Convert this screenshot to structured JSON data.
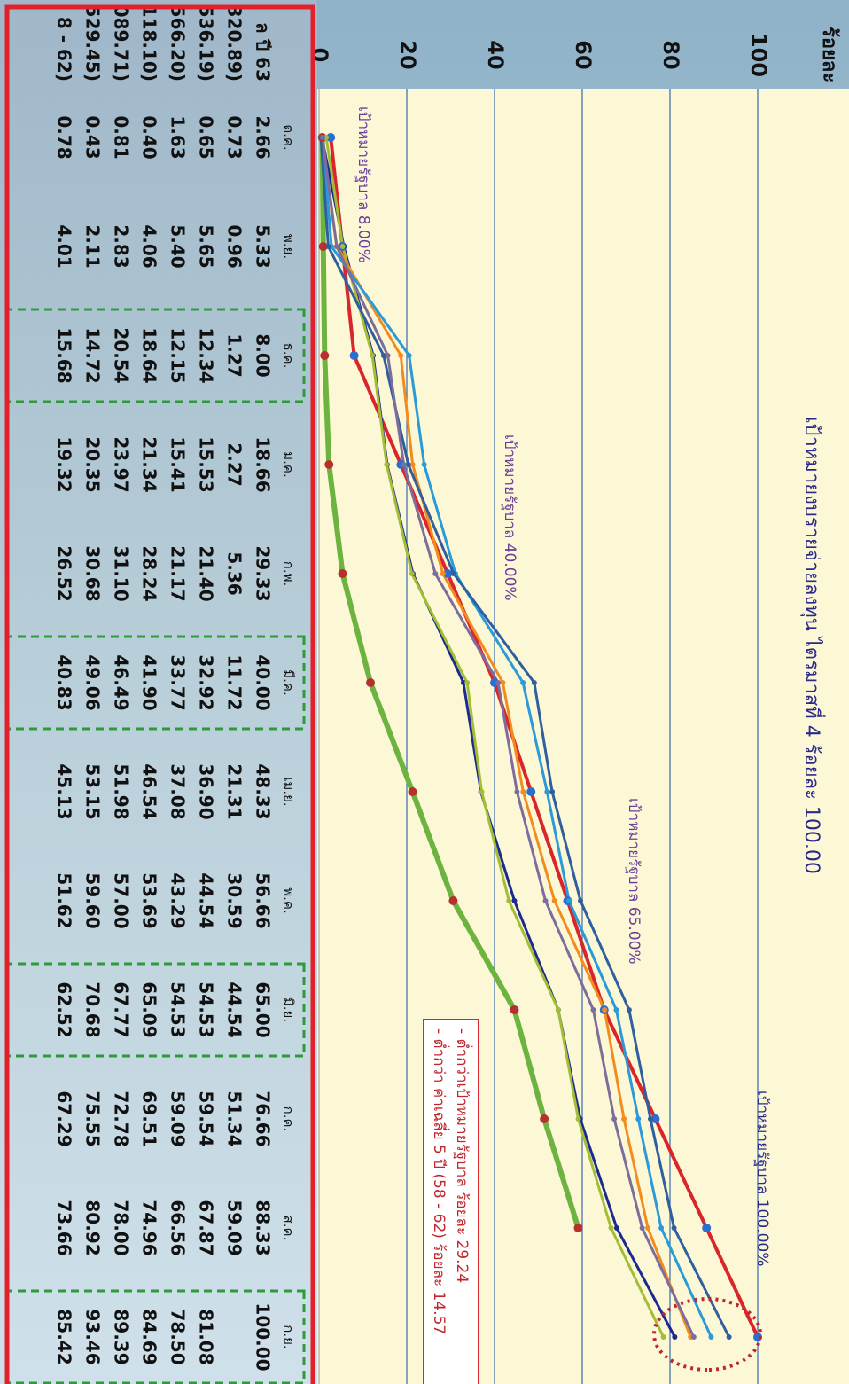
{
  "chart_data": {
    "type": "line",
    "title": "เป้าหมายงบรายจ่ายลงทุน ไตรมาสที่ 4 ร้อยละ 100.00",
    "y_label": "ร้อยละ",
    "categories": [
      "ต.ค.",
      "พ.ย.",
      "ธ.ค.",
      "ม.ค.",
      "ก.พ.",
      "มี.ค.",
      "เม.ย.",
      "พ.ค.",
      "มิ.ย.",
      "ก.ค.",
      "ส.ค.",
      "ก.ย."
    ],
    "ylim": [
      0,
      100
    ],
    "yticks": [
      0,
      20,
      40,
      60,
      80,
      100
    ],
    "grid": true,
    "annotations": [
      "เป้าหมายรัฐบาล 8.00%",
      "เป้าหมายรัฐบาล 40.00%",
      "เป้าหมายรัฐบาล 65.00%",
      "เป้าหมายรัฐบาล 100.00%"
    ],
    "note_lines": [
      "- ต่ำกว่าเป้าหมายรัฐบาล ร้อยละ 29.24",
      "- ต่ำกว่า ค่าเฉลี่ย 5 ปี (58 - 62) ร้อยละ 14.57"
    ],
    "series": [
      {
        "name": "ล ปี 63",
        "color": "#d9262b",
        "line_width": 4,
        "values": [
          2.66,
          5.33,
          8.0,
          18.66,
          29.33,
          40.0,
          48.33,
          56.66,
          65.0,
          76.66,
          88.33,
          100.0
        ],
        "value_labels": [
          "2.66",
          "5.33",
          "8.00",
          "18.66",
          "29.33",
          "40.00",
          "48.33",
          "56.66",
          "65.00",
          "76.66",
          "88.33",
          "100.00"
        ]
      },
      {
        "name": "320.89)",
        "color": "#6cb33f",
        "line_width": 6,
        "values": [
          0.73,
          0.96,
          1.27,
          2.27,
          5.36,
          11.72,
          21.31,
          30.59,
          44.54,
          51.34,
          59.09,
          null
        ],
        "value_labels": [
          "0.73",
          "0.96",
          "1.27",
          "2.27",
          "5.36",
          "11.72",
          "21.31",
          "30.59",
          "44.54",
          "51.34",
          "59.09",
          null
        ]
      },
      {
        "name": "536.19)",
        "color": "#1c2a8f",
        "line_width": 3,
        "values": [
          0.65,
          5.65,
          12.34,
          15.53,
          21.4,
          32.92,
          36.9,
          44.54,
          54.53,
          59.54,
          67.87,
          81.08
        ],
        "value_labels": [
          "0.65",
          "5.65",
          "12.34",
          "15.53",
          "21.40",
          "32.92",
          "36.90",
          "44.54",
          "54.53",
          "59.54",
          "67.87",
          "81.08"
        ]
      },
      {
        "name": "566.20)",
        "color": "#a3bd36",
        "line_width": 3,
        "values": [
          1.63,
          5.4,
          12.15,
          15.41,
          21.17,
          33.77,
          37.08,
          43.29,
          54.53,
          59.09,
          66.56,
          78.5
        ],
        "value_labels": [
          "1.63",
          "5.40",
          "12.15",
          "15.41",
          "21.17",
          "33.77",
          "37.08",
          "43.29",
          "54.53",
          "59.09",
          "66.56",
          "78.50"
        ]
      },
      {
        "name": "118.10)",
        "color": "#f28c1e",
        "line_width": 3,
        "values": [
          0.4,
          4.06,
          18.64,
          21.34,
          28.24,
          41.9,
          46.54,
          53.69,
          65.09,
          69.51,
          74.96,
          84.69
        ],
        "value_labels": [
          "0.40",
          "4.06",
          "18.64",
          "21.34",
          "28.24",
          "41.90",
          "46.54",
          "53.69",
          "65.09",
          "69.51",
          "74.96",
          "84.69"
        ]
      },
      {
        "name": "089.71)",
        "color": "#2a9ad8",
        "line_width": 3,
        "values": [
          0.81,
          2.83,
          20.54,
          23.97,
          31.1,
          46.49,
          51.98,
          57.0,
          67.77,
          72.78,
          78.0,
          89.39
        ],
        "value_labels": [
          "0.81",
          "2.83",
          "20.54",
          "23.97",
          "31.10",
          "46.49",
          "51.98",
          "57.00",
          "67.77",
          "72.78",
          "78.00",
          "89.39"
        ]
      },
      {
        "name": "529.45)",
        "color": "#2f5f9e",
        "line_width": 3,
        "values": [
          0.43,
          2.11,
          14.72,
          20.35,
          30.68,
          49.06,
          53.15,
          59.6,
          70.68,
          75.55,
          80.92,
          93.46
        ],
        "value_labels": [
          "0.43",
          "2.11",
          "14.72",
          "20.35",
          "30.68",
          "49.06",
          "53.15",
          "59.60",
          "70.68",
          "75.55",
          "80.92",
          "93.46"
        ]
      },
      {
        "name": "8 - 62)",
        "color": "#7c6d9c",
        "line_width": 3,
        "values": [
          0.78,
          4.01,
          15.68,
          19.32,
          26.52,
          40.83,
          45.13,
          51.62,
          62.52,
          67.29,
          73.66,
          85.42
        ],
        "value_labels": [
          "0.78",
          "4.01",
          "15.68",
          "19.32",
          "26.52",
          "40.83",
          "45.13",
          "51.62",
          "62.52",
          "67.29",
          "73.66",
          "85.42"
        ]
      }
    ]
  }
}
